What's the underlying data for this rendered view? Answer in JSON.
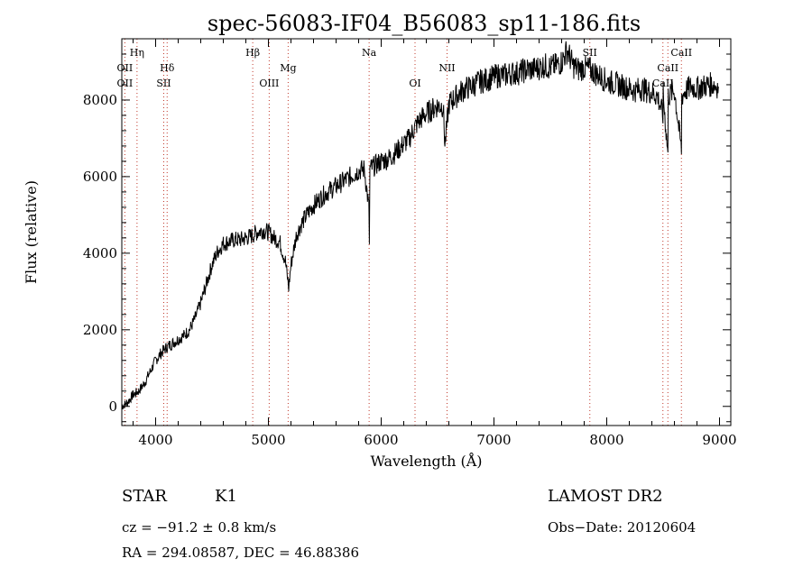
{
  "chart_data": {
    "type": "line",
    "title": "spec-56083-IF04_B56083_sp11-186.fits",
    "xlabel": "Wavelength (Å)",
    "ylabel": "Flux (relative)",
    "xlim": [
      3700,
      9100
    ],
    "ylim": [
      -500,
      9600
    ],
    "x_ticks": [
      4000,
      5000,
      6000,
      7000,
      8000,
      9000
    ],
    "y_ticks": [
      0,
      2000,
      4000,
      6000,
      8000
    ],
    "grid": false,
    "series": [
      {
        "x": [
          3700,
          3750,
          3800,
          3850,
          3900,
          3950,
          4000,
          4050,
          4100,
          4150,
          4200,
          4250,
          4300,
          4350,
          4400,
          4450,
          4500,
          4550,
          4600,
          4650,
          4700,
          4750,
          4800,
          4850,
          4900,
          4950,
          5000,
          5050,
          5100,
          5150,
          5180,
          5200,
          5250,
          5300,
          5350,
          5400,
          5450,
          5500,
          5550,
          5600,
          5650,
          5700,
          5750,
          5800,
          5850,
          5890,
          5895,
          5900,
          5950,
          6000,
          6050,
          6100,
          6150,
          6200,
          6250,
          6300,
          6350,
          6400,
          6450,
          6500,
          6550,
          6565,
          6600,
          6650,
          6700,
          6750,
          6800,
          6850,
          6900,
          6950,
          7000,
          7050,
          7100,
          7150,
          7200,
          7250,
          7300,
          7350,
          7400,
          7450,
          7500,
          7550,
          7600,
          7650,
          7700,
          7750,
          7800,
          7850,
          7900,
          7950,
          8000,
          8050,
          8100,
          8150,
          8200,
          8250,
          8300,
          8350,
          8400,
          8450,
          8498,
          8500,
          8542,
          8545,
          8600,
          8662,
          8665,
          8700,
          8750,
          8800,
          8850,
          8900,
          8950,
          8990
        ],
        "y": [
          0,
          100,
          300,
          400,
          600,
          900,
          1200,
          1400,
          1550,
          1650,
          1750,
          1850,
          2000,
          2300,
          2700,
          3200,
          3700,
          4050,
          4250,
          4300,
          4350,
          4350,
          4400,
          4450,
          4550,
          4600,
          4550,
          4400,
          4300,
          3800,
          3100,
          3700,
          4500,
          4800,
          5050,
          5250,
          5400,
          5550,
          5650,
          5750,
          5850,
          5950,
          6050,
          6150,
          6200,
          5200,
          4300,
          6200,
          6300,
          6400,
          6450,
          6550,
          6700,
          6850,
          7000,
          7300,
          7500,
          7650,
          7750,
          7850,
          7850,
          6800,
          7900,
          8050,
          8200,
          8300,
          8350,
          8450,
          8500,
          8550,
          8600,
          8650,
          8650,
          8700,
          8700,
          8750,
          8800,
          8800,
          8850,
          8900,
          8850,
          8900,
          9000,
          9300,
          8900,
          8800,
          8850,
          8800,
          8700,
          8600,
          8500,
          8450,
          8400,
          8350,
          8300,
          8250,
          8300,
          8250,
          8200,
          8100,
          7600,
          8150,
          6600,
          8100,
          8250,
          6700,
          8100,
          8250,
          8350,
          8300,
          8350,
          8400,
          8400,
          8350
        ]
      }
    ],
    "line_markers": [
      {
        "label": "Hη",
        "x": 3835,
        "row": 1
      },
      {
        "label": "OII",
        "x": 3727,
        "row": 2
      },
      {
        "label": "OII",
        "x": 3727,
        "row": 3
      },
      {
        "label": "Hδ",
        "x": 4102,
        "row": 2
      },
      {
        "label": "SII",
        "x": 4072,
        "row": 3
      },
      {
        "label": "Hβ",
        "x": 4861,
        "row": 1
      },
      {
        "label": "Mg",
        "x": 5175,
        "row": 2
      },
      {
        "label": "OIII",
        "x": 5007,
        "row": 3
      },
      {
        "label": "Na",
        "x": 5893,
        "row": 1
      },
      {
        "label": "NII",
        "x": 6584,
        "row": 2
      },
      {
        "label": "OI",
        "x": 6300,
        "row": 3
      },
      {
        "label": "SII",
        "x": 7850,
        "row": 1
      },
      {
        "label": "CaII",
        "x": 8662,
        "row": 1
      },
      {
        "label": "CaII",
        "x": 8542,
        "row": 2
      },
      {
        "label": "CaII",
        "x": 8498,
        "row": 3
      }
    ]
  },
  "footer": {
    "object_class": "STAR",
    "subclass": "K1",
    "survey": "LAMOST DR2",
    "redshift": "cz = −91.2 ± 0.8 km/s",
    "obs_date": "Obs−Date: 20120604",
    "coords": "RA = 294.08587, DEC =  46.88386"
  }
}
